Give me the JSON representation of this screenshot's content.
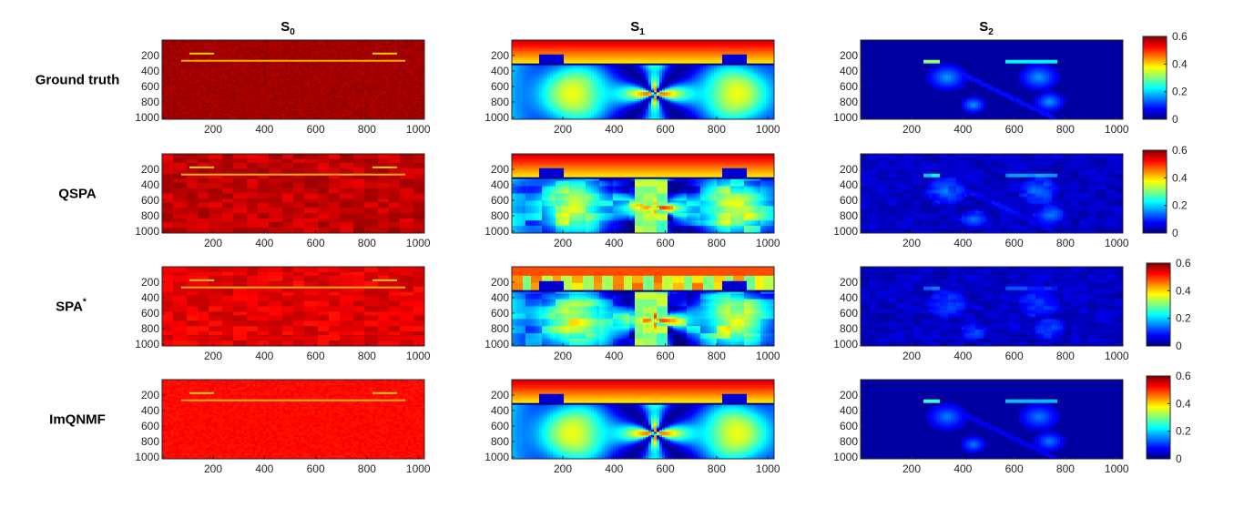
{
  "figure": {
    "column_titles": [
      {
        "base": "S",
        "sub": "0"
      },
      {
        "base": "S",
        "sub": "1"
      },
      {
        "base": "S",
        "sub": "2"
      }
    ],
    "row_labels": [
      {
        "text": "Ground truth",
        "sup": ""
      },
      {
        "text": "QSPA",
        "sup": ""
      },
      {
        "text": "SPA",
        "sup": "*"
      },
      {
        "text": "ImQNMF",
        "sup": ""
      }
    ],
    "colormap": "jet"
  },
  "chart_data": {
    "type": "heatmap",
    "grid_rows": 4,
    "grid_cols": 3,
    "x_ticks": [
      200,
      400,
      600,
      800,
      1000
    ],
    "y_ticks": [
      200,
      400,
      600,
      800,
      1000
    ],
    "xlim": [
      1,
      1024
    ],
    "ylim": [
      1,
      1024
    ],
    "colorbar": {
      "ticks": [
        0,
        0.2,
        0.4,
        0.6
      ],
      "tick_labels": [
        "0",
        "0.2",
        "0.4",
        "0.6"
      ],
      "range": [
        0,
        0.6
      ]
    },
    "panels": [
      {
        "row": "Ground truth",
        "column": "S0",
        "mean_level": 0.59,
        "pattern": "uniform-high"
      },
      {
        "row": "Ground truth",
        "column": "S1",
        "pattern": "radial-butterfly"
      },
      {
        "row": "Ground truth",
        "column": "S2",
        "pattern": "sparse-low"
      },
      {
        "row": "QSPA",
        "column": "S0",
        "mean_level": 0.57,
        "pattern": "blocky-high"
      },
      {
        "row": "QSPA",
        "column": "S1",
        "pattern": "radial-butterfly-blocky"
      },
      {
        "row": "QSPA",
        "column": "S2",
        "pattern": "sparse-low"
      },
      {
        "row": "SPA*",
        "column": "S0",
        "mean_level": 0.55,
        "pattern": "blocky-high"
      },
      {
        "row": "SPA*",
        "column": "S1",
        "pattern": "radial-butterfly-blocky"
      },
      {
        "row": "SPA*",
        "column": "S2",
        "pattern": "very-sparse-low"
      },
      {
        "row": "ImQNMF",
        "column": "S0",
        "mean_level": 0.53,
        "pattern": "uniform-high"
      },
      {
        "row": "ImQNMF",
        "column": "S1",
        "pattern": "radial-butterfly"
      },
      {
        "row": "ImQNMF",
        "column": "S2",
        "pattern": "sparse-low"
      }
    ]
  }
}
